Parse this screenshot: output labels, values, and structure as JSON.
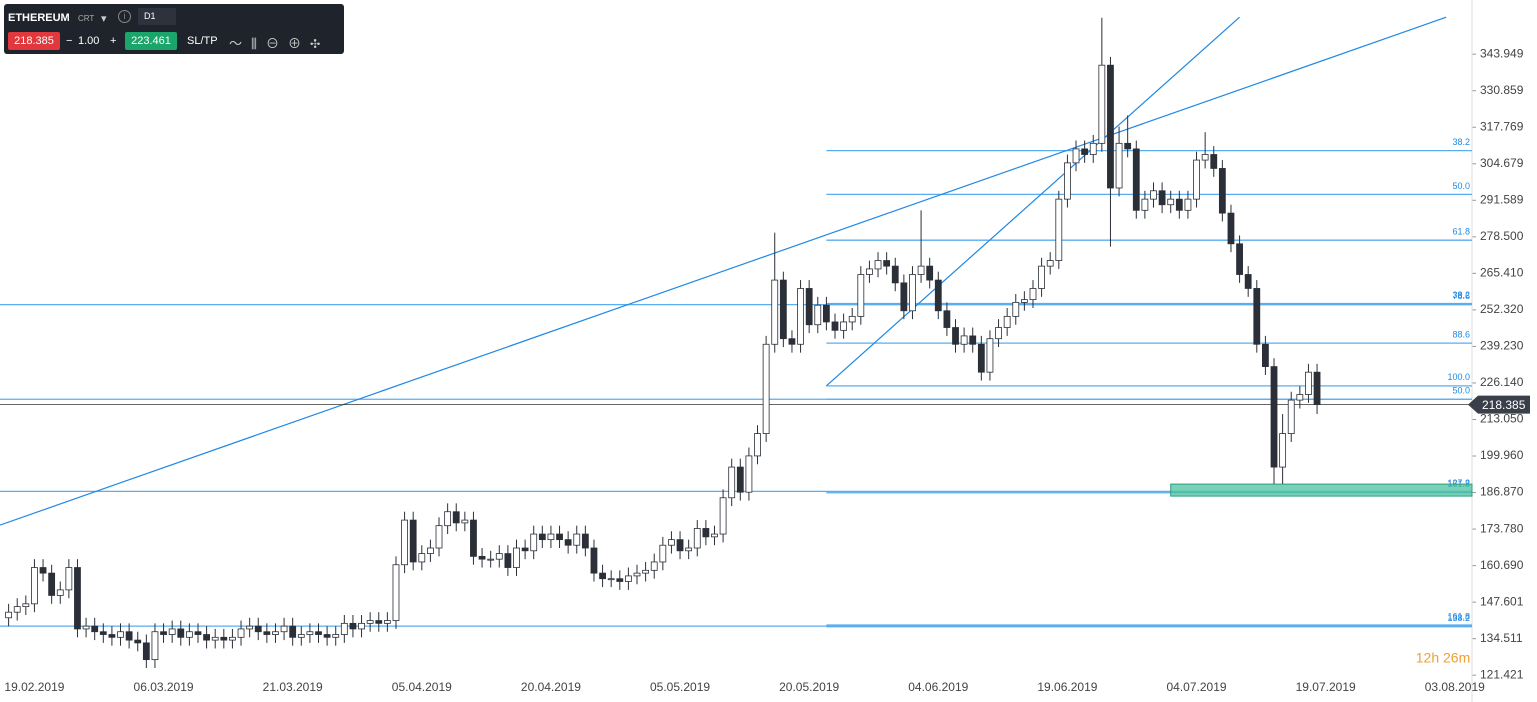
{
  "toolbar": {
    "symbol": "ETHEREUM",
    "symbol_tag": "CRT",
    "interval": "D1",
    "sell": "218.385",
    "spread": "1.00",
    "buy": "223.461",
    "sltp": "SL/TP"
  },
  "chart_data": {
    "type": "candlestick",
    "up_color": "#ffffff",
    "down_color": "#2b2f38",
    "line_color": "#1e88e5",
    "level_color": "#5aaef0",
    "x": [
      "16.02.2019",
      "17.02.2019",
      "18.02.2019",
      "19.02.2019",
      "20.02.2019",
      "21.02.2019",
      "22.02.2019",
      "23.02.2019",
      "24.02.2019",
      "25.02.2019",
      "26.02.2019",
      "27.02.2019",
      "28.02.2019",
      "01.03.2019",
      "02.03.2019",
      "03.03.2019",
      "04.03.2019",
      "05.03.2019",
      "06.03.2019",
      "07.03.2019",
      "08.03.2019",
      "09.03.2019",
      "10.03.2019",
      "11.03.2019",
      "12.03.2019",
      "13.03.2019",
      "14.03.2019",
      "15.03.2019",
      "16.03.2019",
      "17.03.2019",
      "18.03.2019",
      "19.03.2019",
      "20.03.2019",
      "21.03.2019",
      "22.03.2019",
      "23.03.2019",
      "24.03.2019",
      "25.03.2019",
      "26.03.2019",
      "27.03.2019",
      "28.03.2019",
      "29.03.2019",
      "30.03.2019",
      "31.03.2019",
      "01.04.2019",
      "02.04.2019",
      "03.04.2019",
      "04.04.2019",
      "05.04.2019",
      "06.04.2019",
      "07.04.2019",
      "08.04.2019",
      "09.04.2019",
      "10.04.2019",
      "11.04.2019",
      "12.04.2019",
      "13.04.2019",
      "14.04.2019",
      "15.04.2019",
      "16.04.2019",
      "17.04.2019",
      "18.04.2019",
      "19.04.2019",
      "20.04.2019",
      "21.04.2019",
      "22.04.2019",
      "23.04.2019",
      "24.04.2019",
      "25.04.2019",
      "26.04.2019",
      "27.04.2019",
      "28.04.2019",
      "29.04.2019",
      "30.04.2019",
      "01.05.2019",
      "02.05.2019",
      "03.05.2019",
      "04.05.2019",
      "05.05.2019",
      "06.05.2019",
      "07.05.2019",
      "08.05.2019",
      "09.05.2019",
      "10.05.2019",
      "11.05.2019",
      "12.05.2019",
      "13.05.2019",
      "14.05.2019",
      "15.05.2019",
      "16.05.2019",
      "17.05.2019",
      "18.05.2019",
      "19.05.2019",
      "20.05.2019",
      "21.05.2019",
      "22.05.2019",
      "23.05.2019",
      "24.05.2019",
      "25.05.2019",
      "26.05.2019",
      "27.05.2019",
      "28.05.2019",
      "29.05.2019",
      "30.05.2019",
      "31.05.2019",
      "01.06.2019",
      "02.06.2019",
      "03.06.2019",
      "04.06.2019",
      "05.06.2019",
      "06.06.2019",
      "07.06.2019",
      "08.06.2019",
      "09.06.2019",
      "10.06.2019",
      "11.06.2019",
      "12.06.2019",
      "13.06.2019",
      "14.06.2019",
      "15.06.2019",
      "16.06.2019",
      "17.06.2019",
      "18.06.2019",
      "19.06.2019",
      "20.06.2019",
      "21.06.2019",
      "22.06.2019",
      "23.06.2019",
      "24.06.2019",
      "25.06.2019",
      "26.06.2019",
      "27.06.2019",
      "28.06.2019",
      "29.06.2019",
      "30.06.2019",
      "01.07.2019",
      "02.07.2019",
      "03.07.2019",
      "04.07.2019",
      "05.07.2019",
      "06.07.2019",
      "07.07.2019",
      "08.07.2019",
      "09.07.2019",
      "10.07.2019",
      "11.07.2019",
      "12.07.2019",
      "13.07.2019",
      "14.07.2019",
      "15.07.2019",
      "16.07.2019",
      "17.07.2019",
      "18.07.2019"
    ],
    "open": [
      142,
      144,
      146,
      147,
      160,
      158,
      150,
      152,
      160,
      138,
      139,
      137,
      136,
      135,
      137,
      134,
      133,
      127,
      137,
      136,
      138,
      135,
      137,
      136,
      134,
      135,
      134,
      135,
      138,
      139,
      137,
      136,
      137,
      139,
      135,
      136,
      137,
      136,
      135,
      136,
      140,
      138,
      140,
      141,
      140,
      141,
      161,
      177,
      162,
      165,
      167,
      175,
      180,
      176,
      177,
      164,
      163,
      163,
      165,
      160,
      167,
      166,
      172,
      170,
      172,
      170,
      168,
      172,
      167,
      158,
      156,
      156,
      155,
      157,
      158,
      159,
      162,
      168,
      170,
      166,
      167,
      174,
      171,
      172,
      185,
      196,
      187,
      200,
      208,
      240,
      263,
      242,
      240,
      260,
      247,
      254,
      248,
      245,
      248,
      250,
      265,
      267,
      270,
      268,
      262,
      252,
      265,
      268,
      263,
      252,
      246,
      240,
      243,
      240,
      230,
      242,
      246,
      250,
      255,
      256,
      260,
      268,
      270,
      292,
      305,
      310,
      308,
      312,
      340,
      296,
      312,
      310,
      288,
      292,
      295,
      290,
      292,
      288,
      292,
      306,
      308,
      303,
      287,
      276,
      265,
      260,
      240,
      232,
      196,
      208,
      220,
      222,
      230
    ],
    "high": [
      147,
      149,
      150,
      163,
      163,
      161,
      155,
      163,
      163,
      142,
      142,
      140,
      139,
      140,
      140,
      137,
      136,
      140,
      140,
      141,
      141,
      140,
      140,
      139,
      138,
      138,
      138,
      141,
      142,
      142,
      140,
      140,
      142,
      142,
      139,
      140,
      140,
      139,
      139,
      143,
      143,
      143,
      144,
      144,
      144,
      164,
      180,
      180,
      168,
      170,
      178,
      183,
      183,
      180,
      180,
      167,
      166,
      168,
      168,
      170,
      170,
      175,
      175,
      175,
      175,
      173,
      175,
      175,
      170,
      161,
      159,
      159,
      160,
      161,
      162,
      165,
      171,
      173,
      173,
      170,
      177,
      177,
      175,
      188,
      199,
      199,
      203,
      211,
      243,
      280,
      266,
      245,
      263,
      263,
      257,
      257,
      251,
      251,
      253,
      268,
      270,
      273,
      273,
      271,
      265,
      268,
      288,
      271,
      266,
      255,
      249,
      246,
      246,
      243,
      245,
      249,
      253,
      258,
      259,
      263,
      271,
      273,
      295,
      308,
      313,
      313,
      315,
      357,
      343,
      318,
      322,
      313,
      295,
      298,
      298,
      295,
      295,
      295,
      309,
      316,
      311,
      306,
      290,
      279,
      268,
      263,
      243,
      235,
      215,
      223,
      225,
      233,
      233
    ],
    "low": [
      139,
      141,
      143,
      144,
      155,
      147,
      147,
      149,
      135,
      135,
      134,
      133,
      132,
      132,
      131,
      130,
      124,
      124,
      133,
      133,
      132,
      132,
      133,
      131,
      131,
      131,
      131,
      132,
      135,
      134,
      133,
      133,
      134,
      132,
      132,
      133,
      133,
      132,
      132,
      133,
      135,
      135,
      137,
      137,
      137,
      138,
      158,
      159,
      159,
      162,
      164,
      172,
      173,
      173,
      161,
      160,
      160,
      160,
      157,
      157,
      163,
      163,
      167,
      167,
      167,
      165,
      165,
      164,
      155,
      153,
      153,
      152,
      152,
      154,
      155,
      156,
      159,
      165,
      163,
      163,
      164,
      168,
      168,
      169,
      182,
      184,
      184,
      197,
      205,
      237,
      239,
      237,
      237,
      244,
      244,
      245,
      242,
      242,
      245,
      247,
      262,
      264,
      265,
      259,
      249,
      249,
      262,
      260,
      249,
      243,
      237,
      237,
      237,
      227,
      227,
      239,
      243,
      247,
      252,
      253,
      257,
      265,
      267,
      289,
      302,
      305,
      305,
      309,
      275,
      293,
      307,
      285,
      285,
      289,
      287,
      287,
      285,
      285,
      289,
      303,
      300,
      284,
      273,
      262,
      257,
      237,
      229,
      190,
      190,
      205,
      217,
      219,
      215
    ],
    "close": [
      144,
      146,
      147,
      160,
      158,
      150,
      152,
      160,
      138,
      139,
      137,
      136,
      135,
      137,
      134,
      133,
      127,
      137,
      136,
      138,
      135,
      137,
      136,
      134,
      135,
      134,
      135,
      138,
      139,
      137,
      136,
      137,
      139,
      135,
      136,
      137,
      136,
      135,
      136,
      140,
      138,
      140,
      141,
      140,
      141,
      161,
      177,
      162,
      165,
      167,
      175,
      180,
      176,
      177,
      164,
      163,
      163,
      165,
      160,
      167,
      166,
      172,
      170,
      172,
      170,
      168,
      172,
      167,
      158,
      156,
      156,
      155,
      157,
      158,
      159,
      162,
      168,
      170,
      166,
      167,
      174,
      171,
      172,
      185,
      196,
      187,
      200,
      208,
      240,
      263,
      242,
      240,
      260,
      247,
      254,
      248,
      245,
      248,
      250,
      265,
      267,
      270,
      268,
      262,
      252,
      265,
      268,
      263,
      252,
      246,
      240,
      243,
      240,
      230,
      242,
      246,
      250,
      255,
      256,
      260,
      268,
      270,
      292,
      305,
      310,
      308,
      312,
      340,
      296,
      312,
      310,
      288,
      292,
      295,
      290,
      292,
      288,
      292,
      306,
      308,
      303,
      287,
      276,
      265,
      260,
      240,
      232,
      196,
      208,
      220,
      222,
      230,
      218.385
    ],
    "last": 218.385,
    "last_label": "218.385",
    "xlim": [
      "15.02.2019",
      "05.08.2019"
    ],
    "xticks": [
      "19.02.2019",
      "06.03.2019",
      "21.03.2019",
      "05.04.2019",
      "20.04.2019",
      "05.05.2019",
      "20.05.2019",
      "04.06.2019",
      "19.06.2019",
      "04.07.2019",
      "19.07.2019",
      "03.08.2019"
    ],
    "ylim": [
      112,
      363
    ],
    "yticks": [
      121.421,
      134.511,
      147.601,
      {
        "value": 160.69,
        "label": "160.690"
      },
      {
        "value": 173.78,
        "label": "173.780"
      },
      {
        "value": 186.87,
        "label": "186.870"
      },
      {
        "value": 199.96,
        "label": "199.960"
      },
      {
        "value": 213.05,
        "label": "213.050"
      },
      {
        "value": 226.14,
        "label": "226.140"
      },
      {
        "value": 239.23,
        "label": "239.230"
      },
      {
        "value": 252.32,
        "label": "252.320"
      },
      {
        "value": 265.41,
        "label": "265.410"
      },
      {
        "value": 278.5,
        "label": "278.500"
      },
      291.589,
      304.679,
      317.769,
      330.859,
      343.949
    ],
    "hlines": [
      254.2,
      220.3,
      187.3,
      139
    ],
    "fib_from": "22.05.2019",
    "levels": [
      {
        "label": "38.2",
        "value": 309.4
      },
      {
        "label": "50.0",
        "value": 293.7
      },
      {
        "label": "61.8",
        "value": 277.3
      },
      {
        "label": "38.2",
        "value": 254.6
      },
      {
        "label": "78.6",
        "value": 254.2
      },
      {
        "label": "88.6",
        "value": 240.4
      },
      {
        "label": "100.0",
        "value": 225.1
      },
      {
        "label": "50.0",
        "value": 220.3
      },
      {
        "label": "127.2",
        "value": 187.2
      },
      {
        "label": "161.8",
        "value": 186.8
      },
      {
        "label": "161.8",
        "value": 139.4
      },
      {
        "label": "138.2",
        "value": 138.8
      }
    ],
    "trendlines": [
      {
        "from": "15.02.2019",
        "from_value": 175.2,
        "to": "02.08.2019",
        "to_value": 357.2
      },
      {
        "from": "22.05.2019",
        "from_value": 225.1,
        "to": "09.07.2019",
        "to_value": 357.2
      }
    ],
    "zone": {
      "from": "01.07.2019",
      "low": 185.6,
      "high": 189.9,
      "color": "#4cc3a0"
    },
    "countdown": "12h 26m"
  }
}
